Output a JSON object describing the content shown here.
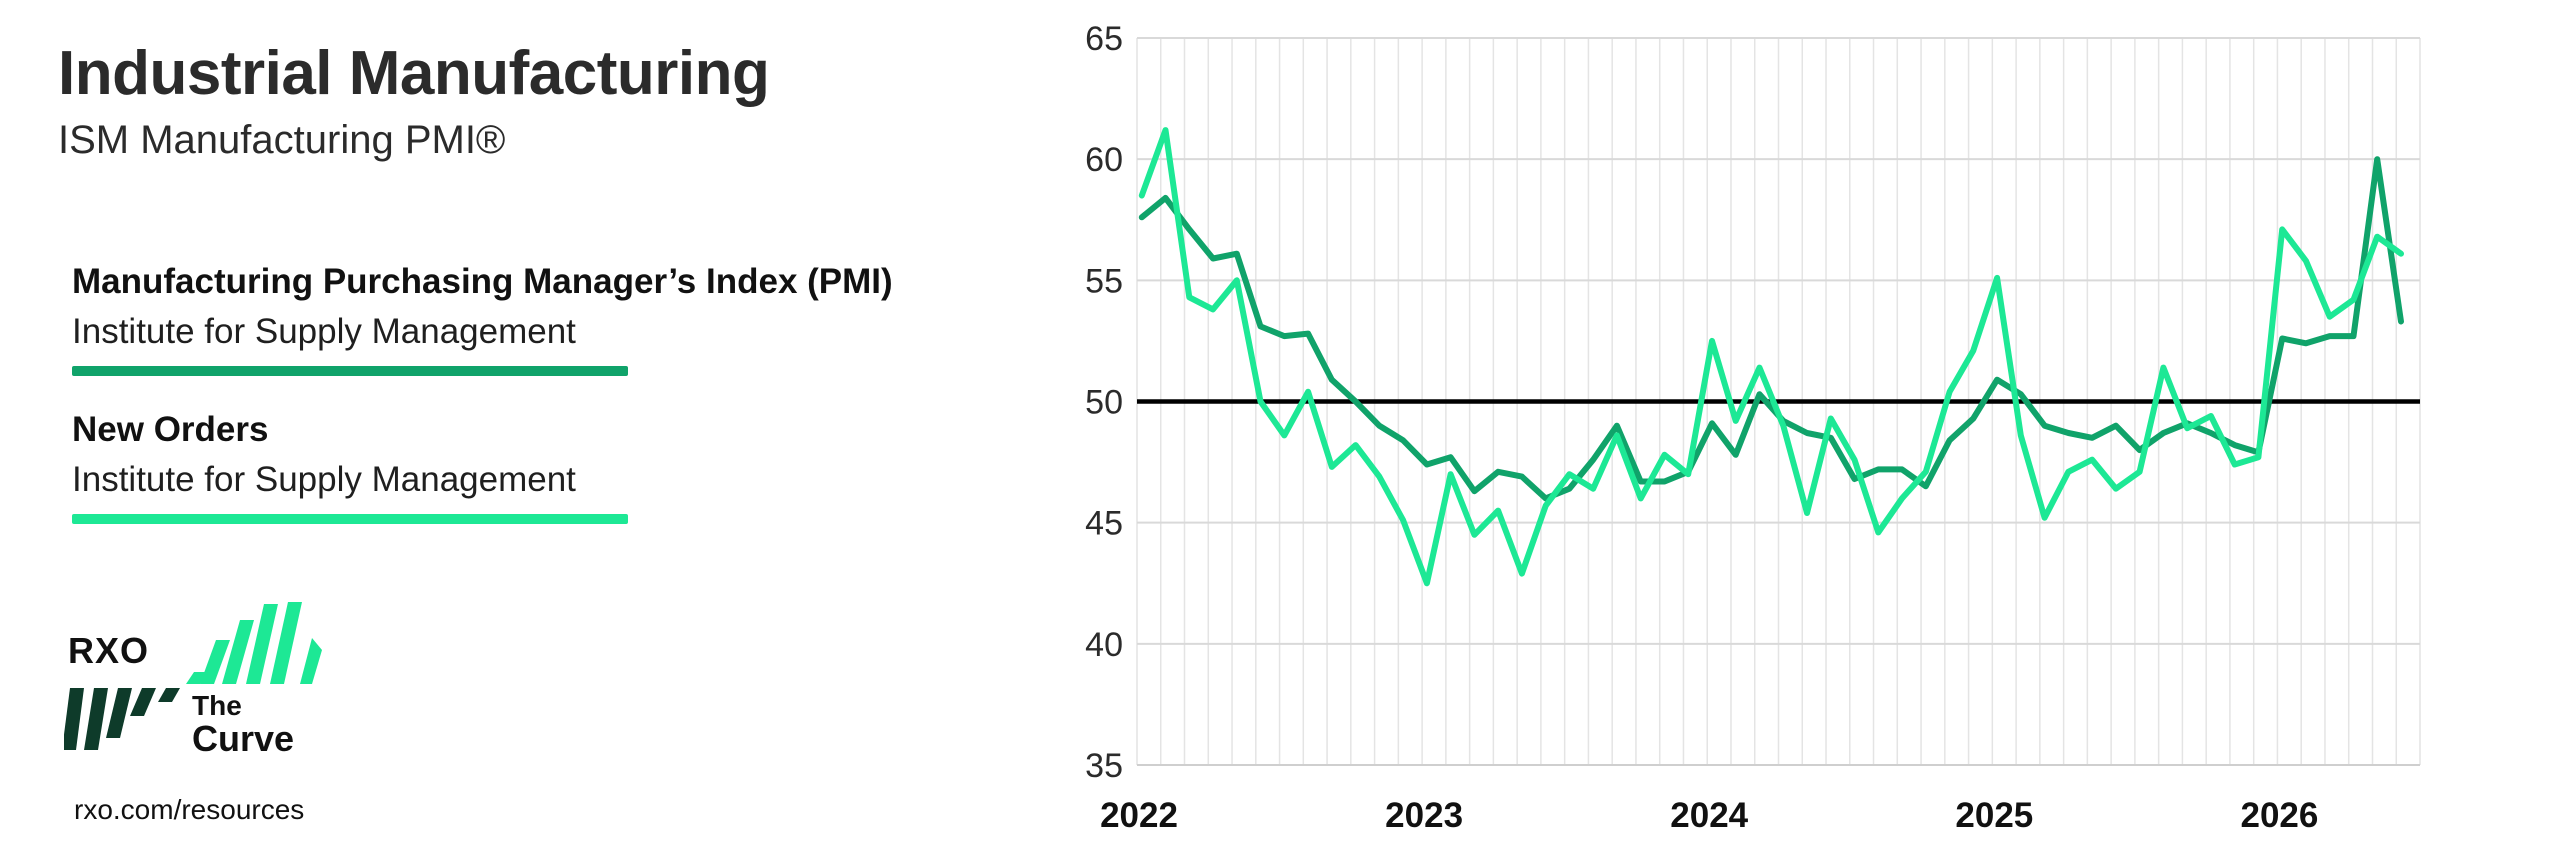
{
  "header": {
    "title": "Industrial Manufacturing",
    "subtitle": "ISM Manufacturing PMI®"
  },
  "legend": [
    {
      "name": "Manufacturing Purchasing Manager’s Index (PMI)",
      "source": "Institute for Supply Management",
      "color": "#10a36a"
    },
    {
      "name": "New Orders",
      "source": "Institute for Supply Management",
      "color": "#1de895"
    }
  ],
  "branding": {
    "logo_text": "RXO",
    "logo_sub_1": "The",
    "logo_sub_2": "Curve",
    "url": "rxo.com/resources"
  },
  "chart_data": {
    "type": "line",
    "ylim": [
      35,
      65
    ],
    "yticks": [
      35,
      40,
      45,
      50,
      55,
      60,
      65
    ],
    "xtick_labels": [
      "2022",
      "2023",
      "2024",
      "2025",
      "2026"
    ],
    "reference_line": 50,
    "grid": true,
    "x": [
      "2022-01",
      "2022-02",
      "2022-03",
      "2022-04",
      "2022-05",
      "2022-06",
      "2022-07",
      "2022-08",
      "2022-09",
      "2022-10",
      "2022-11",
      "2022-12",
      "2023-01",
      "2023-02",
      "2023-03",
      "2023-04",
      "2023-05",
      "2023-06",
      "2023-07",
      "2023-08",
      "2023-09",
      "2023-10",
      "2023-11",
      "2023-12",
      "2024-01",
      "2024-02",
      "2024-03",
      "2024-04",
      "2024-05",
      "2024-06",
      "2024-07",
      "2024-08",
      "2024-09",
      "2024-10",
      "2024-11",
      "2024-12",
      "2025-01",
      "2025-02",
      "2025-03",
      "2025-04",
      "2025-05",
      "2025-06",
      "2025-07",
      "2025-08",
      "2025-09",
      "2025-10",
      "2025-11",
      "2025-12",
      "2026-01",
      "2026-02",
      "2026-03",
      "2026-04",
      "2026-05",
      "2026-06"
    ],
    "series": [
      {
        "name": "Manufacturing Purchasing Manager’s Index (PMI)",
        "color": "#10a36a",
        "values": [
          57.6,
          58.4,
          57.1,
          55.9,
          56.1,
          53.1,
          52.7,
          52.8,
          50.9,
          50.0,
          49.0,
          48.4,
          47.4,
          47.7,
          46.3,
          47.1,
          46.9,
          46.0,
          46.4,
          47.6,
          49.0,
          46.7,
          46.7,
          47.1,
          49.1,
          47.8,
          50.3,
          49.2,
          48.7,
          48.5,
          46.8,
          47.2,
          47.2,
          46.5,
          48.4,
          49.3,
          50.9,
          50.3,
          49.0,
          48.7,
          48.5,
          49.0,
          48.0,
          48.7,
          49.1,
          48.7,
          48.2,
          47.9,
          52.6,
          52.4,
          52.7,
          52.7,
          60.0,
          53.3
        ]
      },
      {
        "name": "New Orders",
        "color": "#1de895",
        "values": [
          58.5,
          61.2,
          54.3,
          53.8,
          55.0,
          50.0,
          48.6,
          50.4,
          47.3,
          48.2,
          46.9,
          45.1,
          42.5,
          47.0,
          44.5,
          45.5,
          42.9,
          45.7,
          47.0,
          46.4,
          48.6,
          46.0,
          47.8,
          47.0,
          52.5,
          49.2,
          51.4,
          49.0,
          45.4,
          49.3,
          47.6,
          44.6,
          46.0,
          47.1,
          50.4,
          52.1,
          55.1,
          48.6,
          45.2,
          47.1,
          47.6,
          46.4,
          47.1,
          51.4,
          48.9,
          49.4,
          47.4,
          47.7,
          57.1,
          55.8,
          53.5,
          54.2,
          56.8,
          56.1
        ]
      }
    ]
  }
}
